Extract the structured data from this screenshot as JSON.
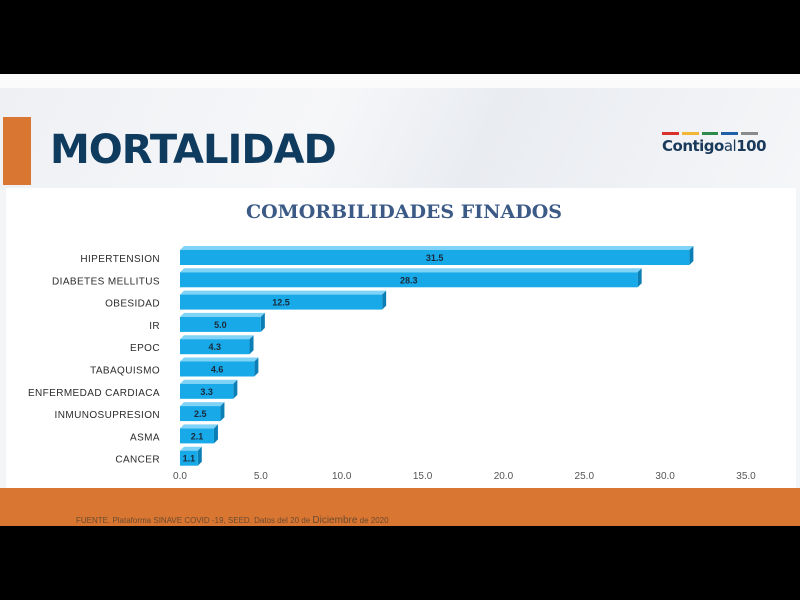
{
  "slide": {
    "title": "MORTALIDAD",
    "logo": {
      "main": "Contigo",
      "mid": "al",
      "num": "100",
      "bar_colors": [
        "#d9322d",
        "#f2b634",
        "#2c8a4a",
        "#1f5fa8",
        "#8a8a8a"
      ]
    },
    "source": {
      "pre": "FUENTE. Plataforma SINAVE COVID -19, SEED. Datos del 20 de ",
      "month": "Diciembre",
      "post": " de 2020"
    }
  },
  "colors": {
    "accent_orange": "#d97631",
    "title_navy": "#0f3b5f",
    "bar_face": "#17a9e8",
    "bar_top": "#7fd3f7",
    "bar_side": "#0b7fb5",
    "chart_title": "#3b5a86"
  },
  "chart_data": {
    "type": "bar",
    "orientation": "horizontal",
    "title": "COMORBILIDADES FINADOS",
    "categories": [
      "HIPERTENSION",
      "DIABETES MELLITUS",
      "OBESIDAD",
      "IR",
      "EPOC",
      "TABAQUISMO",
      "ENFERMEDAD CARDIACA",
      "INMUNOSUPRESION",
      "ASMA",
      "CANCER"
    ],
    "values": [
      31.5,
      28.3,
      12.5,
      5.0,
      4.3,
      4.6,
      3.3,
      2.5,
      2.1,
      1.1
    ],
    "value_labels": [
      "31.5",
      "28.3",
      "12.5",
      "5.0",
      "4.3",
      "4.6",
      "3.3",
      "2.5",
      "2.1",
      "1.1"
    ],
    "xlim": [
      0,
      35
    ],
    "xticks": [
      "0.0",
      "5.0",
      "10.0",
      "15.0",
      "20.0",
      "25.0",
      "30.0",
      "35.0"
    ],
    "grid": false,
    "style": "3d"
  }
}
